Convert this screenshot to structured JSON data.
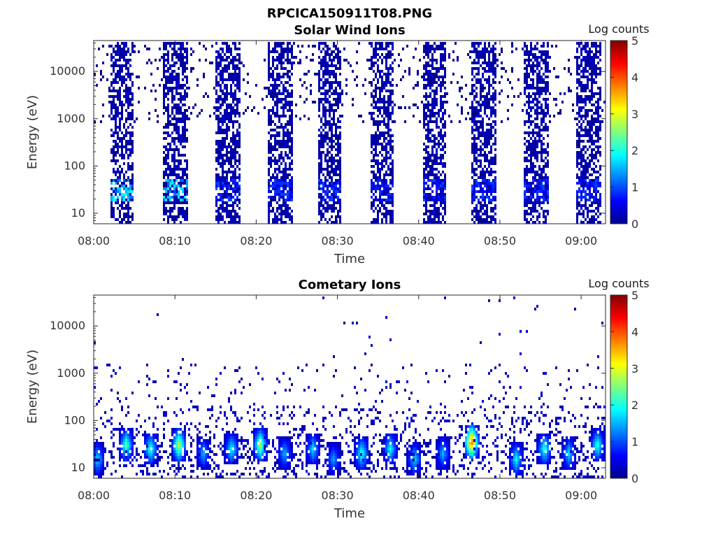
{
  "figure": {
    "title": "RPCICA150911T08.PNG"
  },
  "chart_data": [
    {
      "type": "heatmap",
      "title": "Solar Wind Ions",
      "xlabel": "Time",
      "ylabel": "Energy (eV)",
      "x_ticks": [
        "08:00",
        "08:10",
        "08:20",
        "08:30",
        "08:40",
        "08:50",
        "09:00"
      ],
      "x_range": [
        "08:00",
        "09:03"
      ],
      "y_scale": "log",
      "y_ticks": [
        "10",
        "100",
        "1000",
        "10000"
      ],
      "ylim": [
        6,
        45000
      ],
      "colorbar": {
        "label": "Log counts",
        "ticks": [
          "0",
          "1",
          "2",
          "3",
          "4",
          "5"
        ],
        "range": [
          0,
          5
        ],
        "colormap": "jet"
      },
      "bursts": [
        {
          "start": "08:02:00",
          "end": "08:05:00",
          "peak_energy_eV": 30,
          "peak_log_counts": 2.0
        },
        {
          "start": "08:08:30",
          "end": "08:11:30",
          "peak_energy_eV": 30,
          "peak_log_counts": 2.0
        },
        {
          "start": "08:15:00",
          "end": "08:18:00",
          "peak_energy_eV": 30,
          "peak_log_counts": 1.0
        },
        {
          "start": "08:21:30",
          "end": "08:24:30",
          "peak_energy_eV": 30,
          "peak_log_counts": 1.0
        },
        {
          "start": "08:27:30",
          "end": "08:30:30",
          "peak_energy_eV": 30,
          "peak_log_counts": 1.0
        },
        {
          "start": "08:34:00",
          "end": "08:37:00",
          "peak_energy_eV": 30,
          "peak_log_counts": 1.0
        },
        {
          "start": "08:40:30",
          "end": "08:43:30",
          "peak_energy_eV": 30,
          "peak_log_counts": 1.0
        },
        {
          "start": "08:46:30",
          "end": "08:49:30",
          "peak_energy_eV": 30,
          "peak_log_counts": 1.0
        },
        {
          "start": "08:53:00",
          "end": "08:56:00",
          "peak_energy_eV": 30,
          "peak_log_counts": 1.0
        },
        {
          "start": "08:59:30",
          "end": "09:02:30",
          "peak_energy_eV": 30,
          "peak_log_counts": 1.0
        }
      ]
    },
    {
      "type": "heatmap",
      "title": "Cometary Ions",
      "xlabel": "Time",
      "ylabel": "Energy (eV)",
      "x_ticks": [
        "08:00",
        "08:10",
        "08:20",
        "08:30",
        "08:40",
        "08:50",
        "09:00"
      ],
      "x_range": [
        "08:00",
        "09:03"
      ],
      "y_scale": "log",
      "y_ticks": [
        "10",
        "100",
        "1000",
        "10000"
      ],
      "ylim": [
        6,
        45000
      ],
      "colorbar": {
        "label": "Log counts",
        "ticks": [
          "0",
          "1",
          "2",
          "3",
          "4",
          "5"
        ],
        "range": [
          0,
          5
        ],
        "colormap": "jet"
      },
      "bursts": [
        {
          "time": "08:00:30",
          "energy_eV": 15,
          "log_counts": 1.8
        },
        {
          "time": "08:04:00",
          "energy_eV": 30,
          "log_counts": 2.4
        },
        {
          "time": "08:07:00",
          "energy_eV": 25,
          "log_counts": 2.2
        },
        {
          "time": "08:10:30",
          "energy_eV": 30,
          "log_counts": 3.0
        },
        {
          "time": "08:13:30",
          "energy_eV": 20,
          "log_counts": 1.6
        },
        {
          "time": "08:17:00",
          "energy_eV": 25,
          "log_counts": 2.0
        },
        {
          "time": "08:20:30",
          "energy_eV": 30,
          "log_counts": 2.8
        },
        {
          "time": "08:23:30",
          "energy_eV": 20,
          "log_counts": 1.6
        },
        {
          "time": "08:27:00",
          "energy_eV": 25,
          "log_counts": 1.8
        },
        {
          "time": "08:29:30",
          "energy_eV": 15,
          "log_counts": 1.5
        },
        {
          "time": "08:33:00",
          "energy_eV": 20,
          "log_counts": 2.2
        },
        {
          "time": "08:36:30",
          "energy_eV": 25,
          "log_counts": 2.0
        },
        {
          "time": "08:39:30",
          "energy_eV": 15,
          "log_counts": 1.8
        },
        {
          "time": "08:43:00",
          "energy_eV": 20,
          "log_counts": 1.6
        },
        {
          "time": "08:46:30",
          "energy_eV": 35,
          "log_counts": 4.2
        },
        {
          "time": "08:52:00",
          "energy_eV": 15,
          "log_counts": 2.0
        },
        {
          "time": "08:55:30",
          "energy_eV": 25,
          "log_counts": 2.2
        },
        {
          "time": "08:58:30",
          "energy_eV": 20,
          "log_counts": 1.8
        },
        {
          "time": "09:02:00",
          "energy_eV": 30,
          "log_counts": 2.2
        }
      ]
    }
  ]
}
